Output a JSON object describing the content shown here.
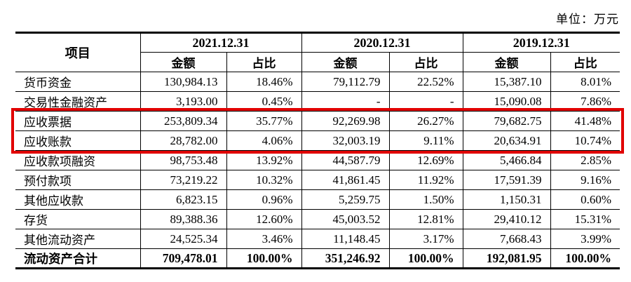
{
  "unit_label": "单位：万元",
  "accent_color": "#e10000",
  "table": {
    "header": {
      "item": "项目",
      "periods": [
        "2021.12.31",
        "2020.12.31",
        "2019.12.31"
      ],
      "amount_label": "金额",
      "ratio_label": "占比"
    },
    "rows": [
      {
        "label": "货币资金",
        "values": [
          "130,984.13",
          "18.46%",
          "79,112.79",
          "22.52%",
          "15,387.10",
          "8.01%"
        ],
        "highlighted": false,
        "bold": false
      },
      {
        "label": "交易性金融资产",
        "values": [
          "3,193.00",
          "0.45%",
          "-",
          "-",
          "15,090.08",
          "7.86%"
        ],
        "highlighted": false,
        "bold": false
      },
      {
        "label": "应收票据",
        "values": [
          "253,809.34",
          "35.77%",
          "92,269.98",
          "26.27%",
          "79,682.75",
          "41.48%"
        ],
        "highlighted": true,
        "bold": false
      },
      {
        "label": "应收账款",
        "values": [
          "28,782.00",
          "4.06%",
          "32,003.19",
          "9.11%",
          "20,634.91",
          "10.74%"
        ],
        "highlighted": true,
        "bold": false
      },
      {
        "label": "应收款项融资",
        "values": [
          "98,753.48",
          "13.92%",
          "44,587.79",
          "12.69%",
          "5,466.84",
          "2.85%"
        ],
        "highlighted": false,
        "bold": false
      },
      {
        "label": "预付款项",
        "values": [
          "73,219.22",
          "10.32%",
          "41,861.45",
          "11.92%",
          "17,591.39",
          "9.16%"
        ],
        "highlighted": false,
        "bold": false
      },
      {
        "label": "其他应收款",
        "values": [
          "6,823.15",
          "0.96%",
          "5,259.75",
          "1.50%",
          "1,150.31",
          "0.60%"
        ],
        "highlighted": false,
        "bold": false
      },
      {
        "label": "存货",
        "values": [
          "89,388.36",
          "12.60%",
          "45,003.52",
          "12.81%",
          "29,410.12",
          "15.31%"
        ],
        "highlighted": false,
        "bold": false
      },
      {
        "label": "其他流动资产",
        "values": [
          "24,525.34",
          "3.46%",
          "11,148.45",
          "3.17%",
          "7,668.43",
          "3.99%"
        ],
        "highlighted": false,
        "bold": false
      },
      {
        "label": "流动资产合计",
        "values": [
          "709,478.01",
          "100.00%",
          "351,246.92",
          "100.00%",
          "192,081.95",
          "100.00%"
        ],
        "highlighted": false,
        "bold": true
      }
    ]
  }
}
